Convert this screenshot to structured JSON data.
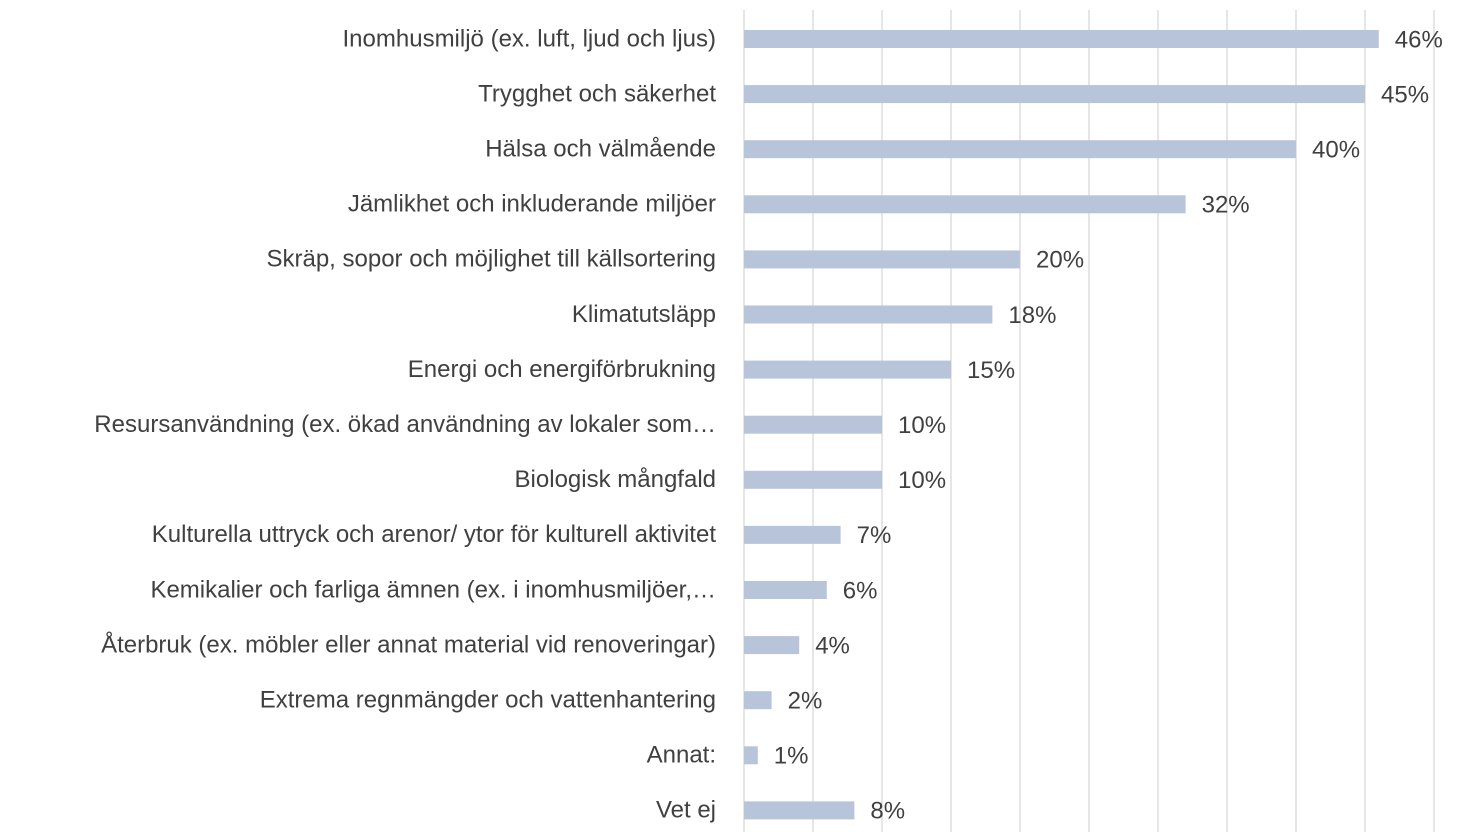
{
  "chart_data": {
    "type": "bar",
    "orientation": "horizontal",
    "categories": [
      "Inomhusmiljö (ex. luft, ljud och ljus)",
      "Trygghet och säkerhet",
      "Hälsa och välmående",
      "Jämlikhet och inkluderande miljöer",
      "Skräp, sopor och möjlighet till källsortering",
      "Klimatutsläpp",
      "Energi och energiförbrukning",
      "Resursanvändning (ex. ökad användning av lokaler som…",
      "Biologisk mångfald",
      "Kulturella uttryck och arenor/ ytor för kulturell aktivitet",
      "Kemikalier och farliga ämnen (ex. i inomhusmiljöer,…",
      "Återbruk (ex. möbler eller annat material vid renoveringar)",
      "Extrema regnmängder och vattenhantering",
      "Annat:",
      "Vet ej"
    ],
    "values": [
      46,
      45,
      40,
      32,
      20,
      18,
      15,
      10,
      10,
      7,
      6,
      4,
      2,
      1,
      8
    ],
    "value_labels": [
      "46%",
      "45%",
      "40%",
      "32%",
      "20%",
      "18%",
      "15%",
      "10%",
      "10%",
      "7%",
      "6%",
      "4%",
      "2%",
      "1%",
      "8%"
    ],
    "color": "#b8c4d9",
    "xlim": [
      0,
      50
    ],
    "xticks": [
      0,
      5,
      10,
      15,
      20,
      25,
      30,
      35,
      40,
      45,
      50
    ],
    "grid": true
  }
}
